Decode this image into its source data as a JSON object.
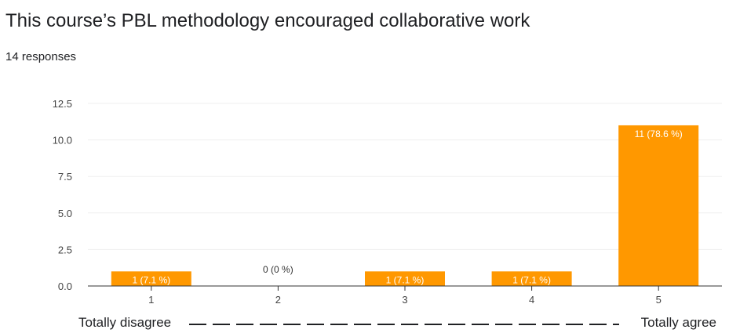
{
  "question": {
    "title": "This course’s PBL methodology encouraged collaborative work",
    "responses_label": "14 responses"
  },
  "scale": {
    "left_label": "Totally disagree",
    "right_label": "Totally agree"
  },
  "colors": {
    "bar": "#ff9800",
    "grid": "#efefef",
    "axis": "#333333",
    "tick_text": "#444444",
    "bar_label_inside": "#ffffff",
    "bar_label_outside": "#333333"
  },
  "chart_data": {
    "type": "bar",
    "categories": [
      "1",
      "2",
      "3",
      "4",
      "5"
    ],
    "values": [
      1,
      0,
      1,
      1,
      11
    ],
    "data_labels": [
      "1 (7.1 %)",
      "0 (0 %)",
      "1 (7.1 %)",
      "1 (7.1 %)",
      "11 (78.6 %)"
    ],
    "ylim": [
      0,
      12.5
    ],
    "yticks": [
      "0.0",
      "2.5",
      "5.0",
      "7.5",
      "10.0",
      "12.5"
    ],
    "ytick_values": [
      0,
      2.5,
      5,
      7.5,
      10,
      12.5
    ],
    "grid": true,
    "xlabel": "",
    "ylabel": ""
  }
}
